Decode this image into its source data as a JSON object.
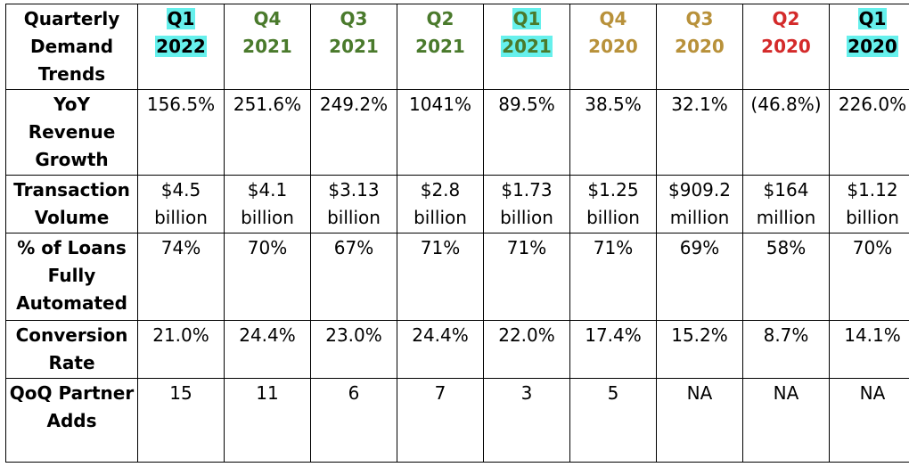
{
  "corner": "Quarterly Demand Trends",
  "quarters": [
    {
      "q": "Q1",
      "year": "2022",
      "color": "#000000",
      "highlight": true
    },
    {
      "q": "Q4",
      "year": "2021",
      "color": "#4a7a2c",
      "highlight": false
    },
    {
      "q": "Q3",
      "year": "2021",
      "color": "#4a7a2c",
      "highlight": false
    },
    {
      "q": "Q2",
      "year": "2021",
      "color": "#4a7a2c",
      "highlight": false
    },
    {
      "q": "Q1",
      "year": "2021",
      "color": "#4a7a2c",
      "highlight": true
    },
    {
      "q": "Q4",
      "year": "2020",
      "color": "#b8913a",
      "highlight": false
    },
    {
      "q": "Q3",
      "year": "2020",
      "color": "#b8913a",
      "highlight": false
    },
    {
      "q": "Q2",
      "year": "2020",
      "color": "#d42a2a",
      "highlight": false
    },
    {
      "q": "Q1",
      "year": "2020",
      "color": "#000000",
      "highlight": true
    }
  ],
  "rows": [
    {
      "label": "YoY Revenue Growth",
      "values": [
        "156.5%",
        "251.6%",
        "249.2%",
        "1041%",
        "89.5%",
        "38.5%",
        "32.1%",
        "(46.8%)",
        "226.0%"
      ]
    },
    {
      "label": "Transaction Volume",
      "values": [
        "$4.5 billion",
        "$4.1 billion",
        "$3.13 billion",
        "$2.8 billion",
        "$1.73 billion",
        "$1.25 billion",
        "$909.2 million",
        "$164 million",
        "$1.12 billion"
      ]
    },
    {
      "label": "% of Loans Fully Automated",
      "values": [
        "74%",
        "70%",
        "67%",
        "71%",
        "71%",
        "71%",
        "69%",
        "58%",
        "70%"
      ]
    },
    {
      "label": "Conversion Rate",
      "values": [
        "21.0%",
        "24.4%",
        "23.0%",
        "24.4%",
        "22.0%",
        "17.4%",
        "15.2%",
        "8.7%",
        "14.1%"
      ]
    },
    {
      "label": "QoQ Partner Adds",
      "values": [
        "15",
        "11",
        "6",
        "7",
        "3",
        "5",
        "NA",
        "NA",
        "NA"
      ]
    }
  ]
}
